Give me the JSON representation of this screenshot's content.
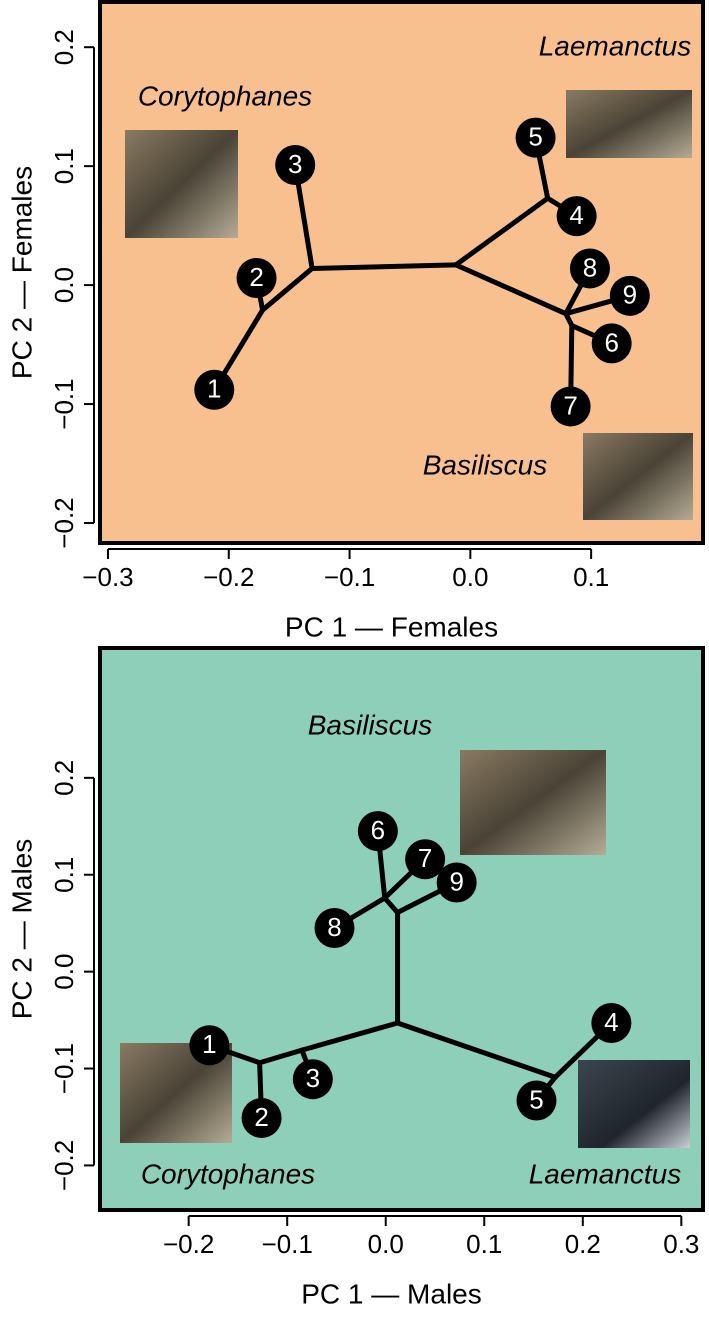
{
  "chart_data": [
    {
      "type": "phylomorphospace",
      "xlabel": "PC 1 — Females",
      "ylabel": "PC 2 — Females",
      "background": "#f9c08f",
      "xlim": [
        -0.3066,
        0.1926
      ],
      "ylim": [
        -0.2168,
        0.238
      ],
      "xticks": [
        {
          "value": -0.3,
          "label": "−0.3"
        },
        {
          "value": -0.2,
          "label": "−0.2"
        },
        {
          "value": -0.1,
          "label": "−0.1"
        },
        {
          "value": 0,
          "label": "0.0"
        },
        0.1
      ],
      "yticks": [
        {
          "value": -0.2,
          "label": "−0.2"
        },
        {
          "value": -0.1,
          "label": "−0.1"
        },
        {
          "value": 0,
          "label": "0.0"
        },
        0.1,
        0.2
      ],
      "annotations": [
        "Laemanctus",
        "Corytophanes",
        "Basiliscus"
      ],
      "tips": {
        "labels": [
          "1",
          "2",
          "3",
          "4",
          "5",
          "6",
          "7",
          "8",
          "9"
        ],
        "x": [
          -0.212,
          -0.177,
          -0.145,
          0.088,
          0.054,
          0.117,
          0.083,
          0.099,
          0.132
        ],
        "y": [
          -0.088,
          0.006,
          0.101,
          0.058,
          0.124,
          -0.049,
          -0.102,
          0.014,
          -0.009
        ],
        "parent": [
          2,
          2,
          1,
          3,
          3,
          5,
          5,
          4,
          4
        ]
      },
      "nodes": {
        "x": [
          -0.012,
          -0.131,
          -0.172,
          0.064,
          0.079,
          0.084
        ],
        "y": [
          0.017,
          0.014,
          -0.021,
          0.073,
          -0.024,
          -0.034
        ],
        "parent": [
          null,
          0,
          1,
          0,
          0,
          4
        ]
      }
    },
    {
      "type": "phylomorphospace",
      "xlabel": "PC 1 — Males",
      "ylabel": "PC 2 — Males",
      "background": "#8ecfb9",
      "xlim": [
        -0.29,
        0.322
      ],
      "ylim": [
        -0.246,
        0.334
      ],
      "xticks": [
        {
          "value": -0.2,
          "label": "−0.2"
        },
        {
          "value": -0.1,
          "label": "−0.1"
        },
        {
          "value": 0,
          "label": "0.0"
        },
        0.1,
        0.2,
        0.3
      ],
      "yticks": [
        {
          "value": -0.2,
          "label": "−0.2"
        },
        {
          "value": -0.1,
          "label": "−0.1"
        },
        {
          "value": 0,
          "label": "0.0"
        },
        0.1,
        0.2
      ],
      "annotations": [
        "Basiliscus",
        "Corytophanes",
        "Laemanctus"
      ],
      "tips": {
        "labels": [
          "1",
          "2",
          "3",
          "4",
          "5",
          "6",
          "7",
          "8",
          "9"
        ],
        "x": [
          -0.179,
          -0.126,
          -0.074,
          0.229,
          0.153,
          -0.008,
          0.04,
          -0.052,
          0.072
        ],
        "y": [
          -0.076,
          -0.151,
          -0.111,
          -0.053,
          -0.133,
          0.145,
          0.116,
          0.045,
          0.092
        ],
        "parent": [
          2,
          2,
          1,
          5,
          5,
          4,
          4,
          4,
          3
        ]
      },
      "nodes": {
        "x": [
          0.012,
          -0.085,
          -0.128,
          0.012,
          -0.001,
          0.172
        ],
        "y": [
          -0.053,
          -0.081,
          -0.094,
          0.061,
          0.076,
          -0.109
        ],
        "parent": [
          null,
          0,
          1,
          0,
          3,
          0
        ]
      }
    }
  ]
}
